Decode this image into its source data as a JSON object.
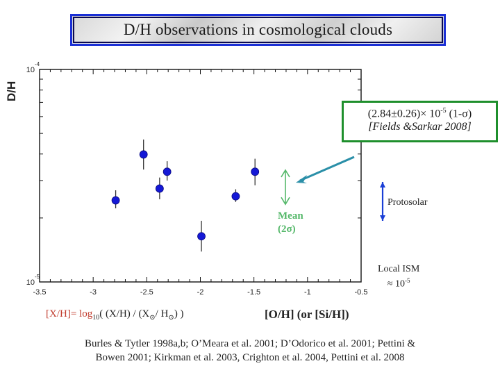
{
  "title": "D/H observations in cosmological clouds",
  "chart_data": {
    "type": "scatter",
    "xlabel": "[O/H] (or [Si/H])",
    "ylabel": "D/H",
    "xlim": [
      -3.5,
      -0.5
    ],
    "ylim_log": [
      1e-05,
      0.0001
    ],
    "x_tick_labels": [
      "-3.5",
      "-3",
      "-2.5",
      "-2",
      "-1.5",
      "-1",
      "-0.5"
    ],
    "y_tick_labels": [
      {
        "base": "10",
        "exp": "-4"
      },
      {
        "base": "10",
        "exp": "-5"
      }
    ],
    "points": [
      {
        "x": -2.79,
        "y": 2.42e-05,
        "yerr_lo": 2e-06,
        "yerr_hi": 2.8e-06
      },
      {
        "x": -2.53,
        "y": 3.98e-05,
        "yerr_lo": 6e-06,
        "yerr_hi": 7e-06
      },
      {
        "x": -2.38,
        "y": 2.75e-05,
        "yerr_lo": 3e-06,
        "yerr_hi": 3.5e-06
      },
      {
        "x": -2.31,
        "y": 3.3e-05,
        "yerr_lo": 3e-06,
        "yerr_hi": 4e-06
      },
      {
        "x": -1.99,
        "y": 1.64e-05,
        "yerr_lo": 2.5e-06,
        "yerr_hi": 3e-06
      },
      {
        "x": -1.67,
        "y": 2.53e-05,
        "yerr_lo": 1.5e-06,
        "yerr_hi": 2e-06
      },
      {
        "x": -1.49,
        "y": 3.3e-05,
        "yerr_lo": 4.5e-06,
        "yerr_hi": 5e-06
      }
    ],
    "mean": {
      "y": 2.84e-05,
      "err_1sigma": 2.6e-06,
      "label_line1": "Mean",
      "label_line2": "(2σ)"
    },
    "colors": {
      "points": "#1418d6",
      "mean": "#55b86a",
      "protosolar": "#1a3fd6",
      "callout_border": "#1e8f2c",
      "callout_arrow": "#2a8fa8",
      "title_border": "#1a2fd6"
    }
  },
  "callout": {
    "value": "(2.84±0.26)× 10-5 (1-σ)",
    "value_main": "(2.84±0.26)× 10",
    "value_exp": "-5",
    "value_tail": " (1-σ)",
    "reference": "[Fields &Sarkar 2008]"
  },
  "protosolar_label": "Protosolar",
  "local_ism": {
    "line1": "Local ISM",
    "line2_main": "≈ 10",
    "line2_exp": "-5"
  },
  "xh_definition": {
    "part1": "[X/H]= log",
    "sub": "10",
    "part2": "( (X/H) / (X",
    "sun1": "⊙",
    "part3": "/ H",
    "sun2": "⊙",
    "part4": ") )"
  },
  "references": {
    "line1": "Burles & Tytler 1998a,b; O’Meara et al. 2001; D’Odorico et al. 2001; Pettini &",
    "line2": "Bowen 2001; Kirkman et al. 2003, Crighton et al. 2004, Pettini et al. 2008"
  }
}
